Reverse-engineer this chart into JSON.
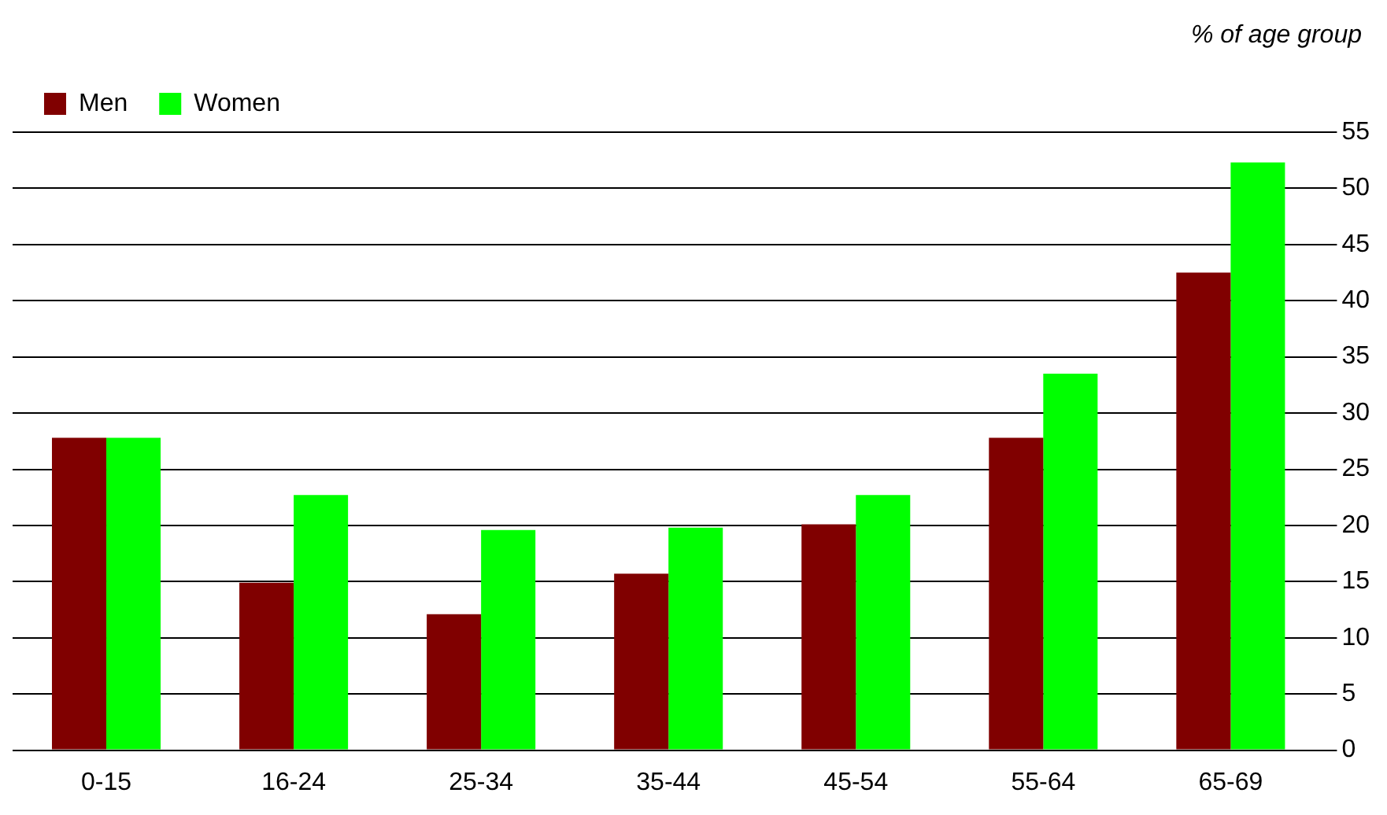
{
  "chart_data": {
    "type": "bar",
    "ylabel": "% of age group",
    "categories": [
      "0-15",
      "16-24",
      "25-34",
      "35-44",
      "45-54",
      "55-64",
      "65-69"
    ],
    "series": [
      {
        "name": "Men",
        "color": "#800000",
        "values": [
          27.8,
          14.9,
          12.1,
          15.7,
          20.1,
          27.8,
          42.5
        ]
      },
      {
        "name": "Women",
        "color": "#00ff00",
        "values": [
          27.8,
          22.7,
          19.6,
          19.8,
          22.7,
          33.5,
          52.3
        ]
      }
    ],
    "ylim": [
      0,
      55
    ],
    "yticks": [
      0,
      5,
      10,
      15,
      20,
      25,
      30,
      35,
      40,
      45,
      50,
      55
    ],
    "grid": "y",
    "legend": "top left"
  }
}
